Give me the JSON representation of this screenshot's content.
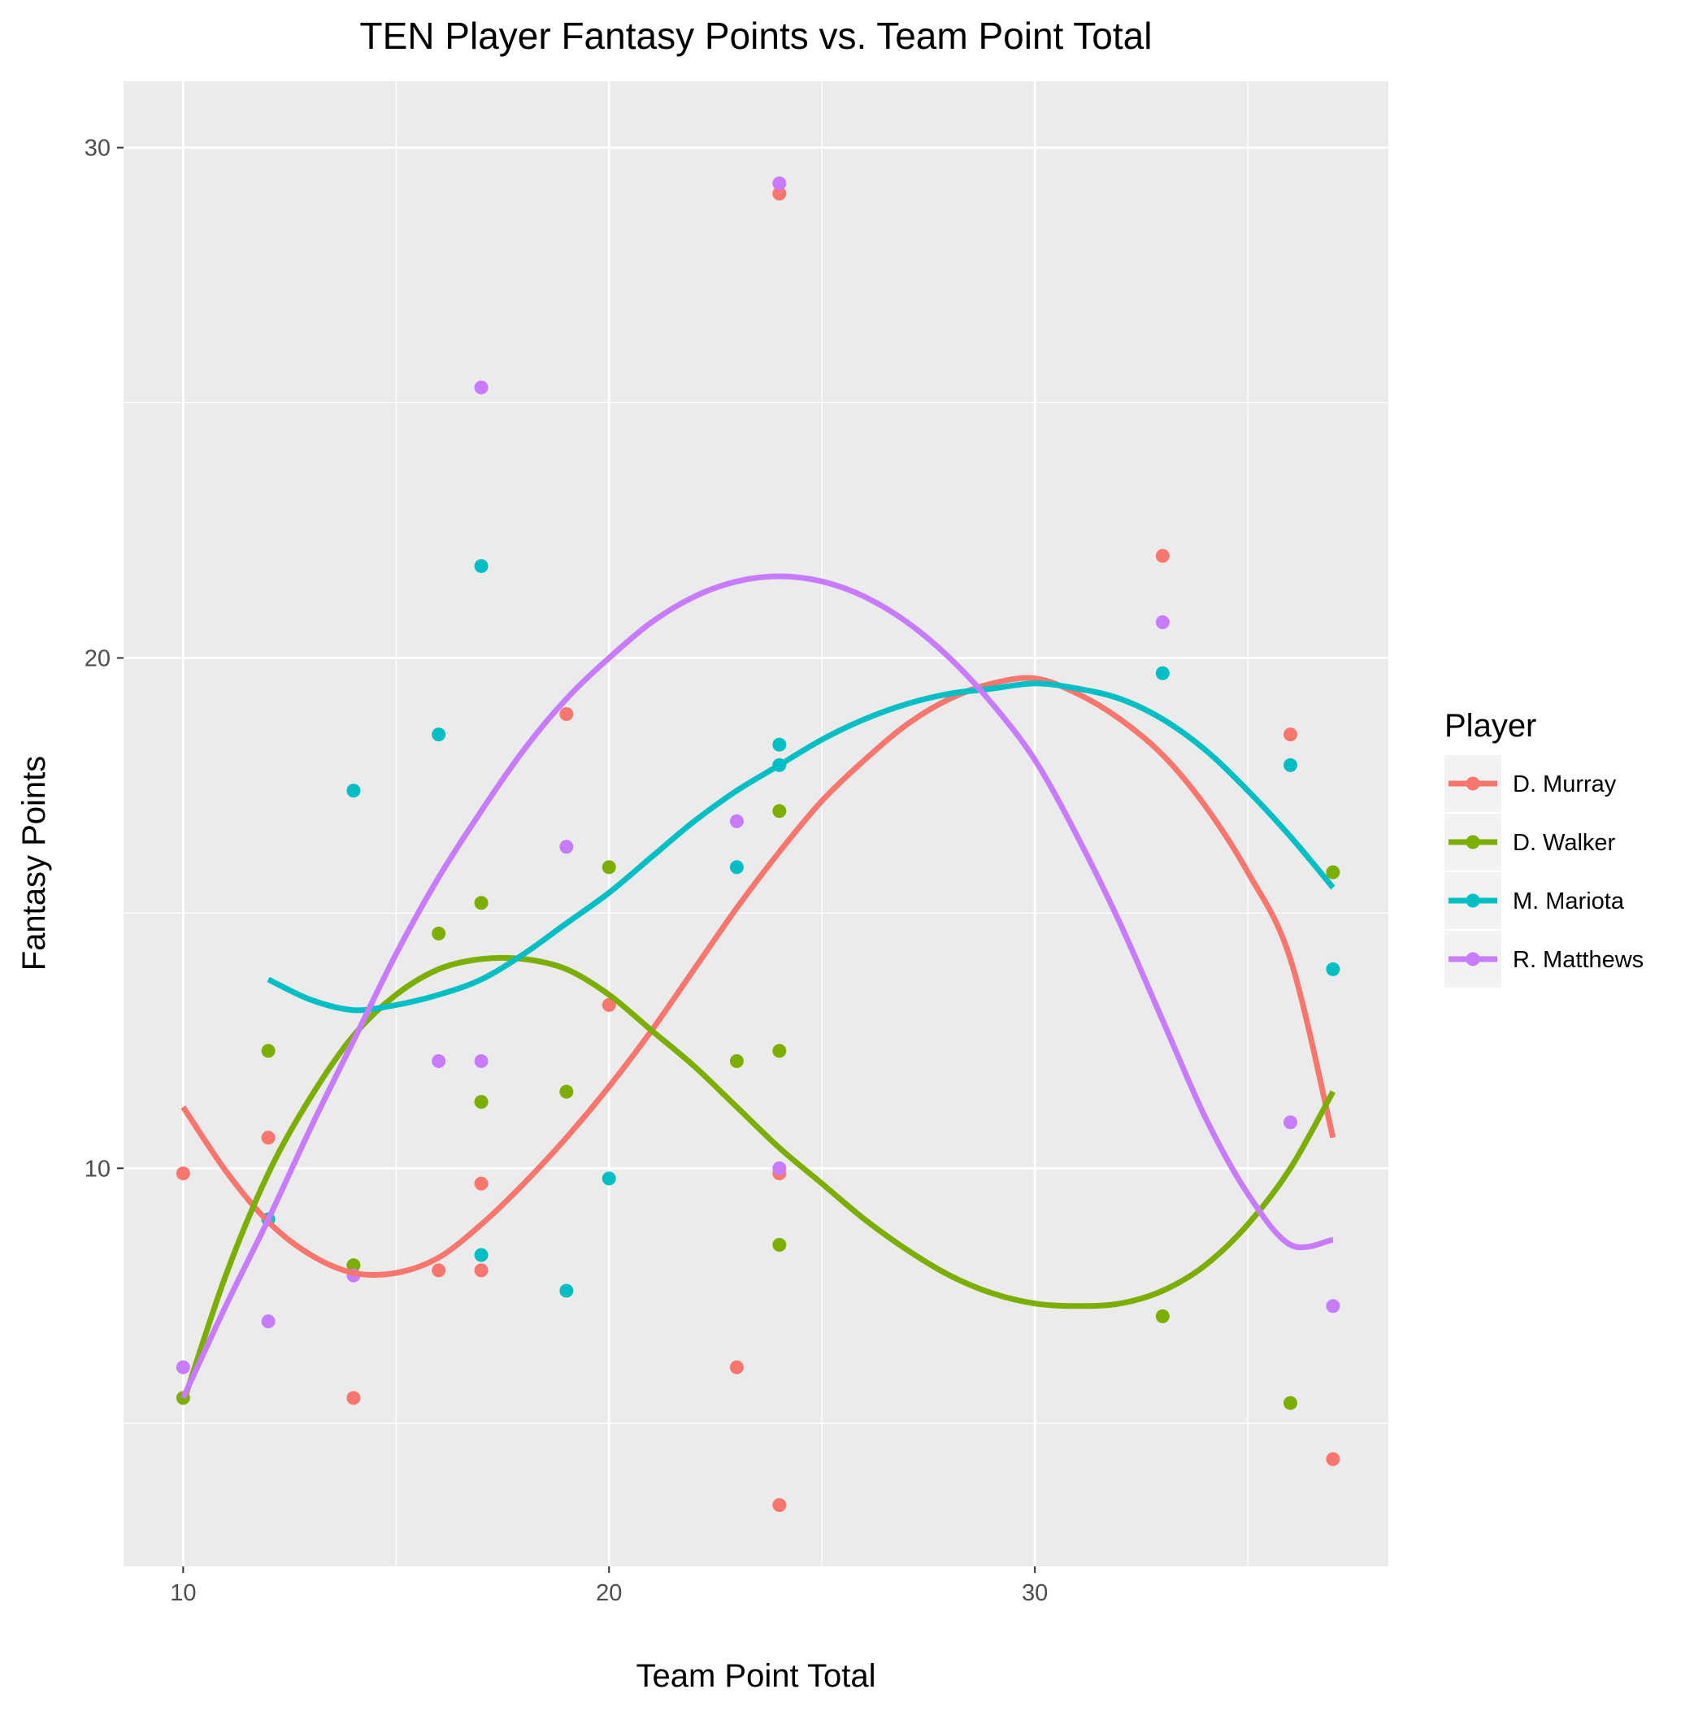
{
  "chart_data": {
    "type": "scatter",
    "title": "TEN Player Fantasy Points vs. Team Point Total",
    "xlabel": "Team Point Total",
    "ylabel": "Fantasy Points",
    "xlim": [
      8.6,
      38.3
    ],
    "ylim": [
      2.2,
      31.3
    ],
    "x_ticks": [
      10,
      20,
      30
    ],
    "y_ticks": [
      10,
      20,
      30
    ],
    "x_minor": [
      15,
      25,
      35
    ],
    "y_minor": [
      5,
      15,
      25
    ],
    "grid": true,
    "background": "#ebebeb",
    "smooth": "loess",
    "legend": {
      "title": "Player",
      "position": "right"
    },
    "series": [
      {
        "name": "D. Murray",
        "color": "#F8766D",
        "points": [
          [
            10,
            9.9
          ],
          [
            12,
            10.6
          ],
          [
            14,
            5.5
          ],
          [
            16,
            8.0
          ],
          [
            17,
            9.7
          ],
          [
            17,
            8.0
          ],
          [
            19,
            18.9
          ],
          [
            20,
            13.2
          ],
          [
            23,
            6.1
          ],
          [
            24,
            29.1
          ],
          [
            24,
            9.9
          ],
          [
            24,
            3.4
          ],
          [
            33,
            22.0
          ],
          [
            36,
            18.5
          ],
          [
            37,
            4.3
          ]
        ],
        "curve": [
          [
            10,
            11.2
          ],
          [
            11,
            9.95
          ],
          [
            12,
            8.95
          ],
          [
            13,
            8.3
          ],
          [
            14,
            7.95
          ],
          [
            15,
            7.95
          ],
          [
            16,
            8.25
          ],
          [
            17,
            8.9
          ],
          [
            18,
            9.7
          ],
          [
            19,
            10.6
          ],
          [
            20,
            11.6
          ],
          [
            21,
            12.7
          ],
          [
            22,
            13.9
          ],
          [
            23,
            15.1
          ],
          [
            24,
            16.2
          ],
          [
            25,
            17.2
          ],
          [
            26,
            18.0
          ],
          [
            27,
            18.7
          ],
          [
            28,
            19.2
          ],
          [
            29,
            19.5
          ],
          [
            30,
            19.6
          ],
          [
            31,
            19.3
          ],
          [
            32,
            18.8
          ],
          [
            33,
            18.1
          ],
          [
            34,
            17.1
          ],
          [
            35,
            15.8
          ],
          [
            36,
            14.1
          ],
          [
            37,
            10.6
          ]
        ]
      },
      {
        "name": "D. Walker",
        "color": "#7CAE00",
        "points": [
          [
            10,
            5.5
          ],
          [
            12,
            12.3
          ],
          [
            14,
            8.1
          ],
          [
            16,
            14.6
          ],
          [
            17,
            15.2
          ],
          [
            17,
            11.3
          ],
          [
            19,
            11.5
          ],
          [
            20,
            15.9
          ],
          [
            23,
            12.1
          ],
          [
            24,
            17.0
          ],
          [
            24,
            12.3
          ],
          [
            24,
            8.5
          ],
          [
            33,
            7.1
          ],
          [
            36,
            5.4
          ],
          [
            37,
            15.8
          ]
        ],
        "curve": [
          [
            10,
            5.4
          ],
          [
            11,
            7.9
          ],
          [
            12,
            9.9
          ],
          [
            13,
            11.4
          ],
          [
            14,
            12.6
          ],
          [
            15,
            13.4
          ],
          [
            16,
            13.9
          ],
          [
            17,
            14.1
          ],
          [
            18,
            14.1
          ],
          [
            19,
            13.9
          ],
          [
            20,
            13.4
          ],
          [
            21,
            12.7
          ],
          [
            22,
            12.0
          ],
          [
            23,
            11.2
          ],
          [
            24,
            10.4
          ],
          [
            25,
            9.7
          ],
          [
            26,
            9.0
          ],
          [
            27,
            8.4
          ],
          [
            28,
            7.9
          ],
          [
            29,
            7.55
          ],
          [
            30,
            7.35
          ],
          [
            31,
            7.3
          ],
          [
            32,
            7.35
          ],
          [
            33,
            7.6
          ],
          [
            34,
            8.1
          ],
          [
            35,
            8.9
          ],
          [
            36,
            10.0
          ],
          [
            37,
            11.5
          ]
        ]
      },
      {
        "name": "M. Mariota",
        "color": "#00BFC4",
        "points": [
          [
            12,
            9.0
          ],
          [
            14,
            17.4
          ],
          [
            16,
            18.5
          ],
          [
            17,
            21.8
          ],
          [
            17,
            8.3
          ],
          [
            19,
            7.6
          ],
          [
            20,
            9.8
          ],
          [
            23,
            15.9
          ],
          [
            24,
            18.3
          ],
          [
            24,
            17.9
          ],
          [
            33,
            19.7
          ],
          [
            36,
            17.9
          ],
          [
            37,
            13.9
          ]
        ],
        "curve": [
          [
            12,
            13.7
          ],
          [
            13,
            13.3
          ],
          [
            14,
            13.1
          ],
          [
            15,
            13.2
          ],
          [
            16,
            13.4
          ],
          [
            17,
            13.7
          ],
          [
            18,
            14.2
          ],
          [
            19,
            14.8
          ],
          [
            20,
            15.4
          ],
          [
            21,
            16.1
          ],
          [
            22,
            16.8
          ],
          [
            23,
            17.4
          ],
          [
            24,
            17.9
          ],
          [
            25,
            18.4
          ],
          [
            26,
            18.8
          ],
          [
            27,
            19.1
          ],
          [
            28,
            19.3
          ],
          [
            29,
            19.4
          ],
          [
            30,
            19.5
          ],
          [
            31,
            19.4
          ],
          [
            32,
            19.2
          ],
          [
            33,
            18.8
          ],
          [
            34,
            18.2
          ],
          [
            35,
            17.4
          ],
          [
            36,
            16.5
          ],
          [
            37,
            15.5
          ]
        ]
      },
      {
        "name": "R. Matthews",
        "color": "#C77CFF",
        "points": [
          [
            10,
            6.1
          ],
          [
            12,
            7.0
          ],
          [
            14,
            7.9
          ],
          [
            16,
            12.1
          ],
          [
            17,
            12.1
          ],
          [
            17,
            25.3
          ],
          [
            19,
            16.3
          ],
          [
            23,
            16.8
          ],
          [
            24,
            29.3
          ],
          [
            24,
            10.0
          ],
          [
            33,
            20.7
          ],
          [
            36,
            10.9
          ],
          [
            37,
            7.3
          ]
        ],
        "curve": [
          [
            10,
            5.5
          ],
          [
            11,
            7.3
          ],
          [
            12,
            9.0
          ],
          [
            13,
            10.8
          ],
          [
            14,
            12.5
          ],
          [
            15,
            14.2
          ],
          [
            16,
            15.7
          ],
          [
            17,
            17.0
          ],
          [
            18,
            18.2
          ],
          [
            19,
            19.2
          ],
          [
            20,
            20.0
          ],
          [
            21,
            20.7
          ],
          [
            22,
            21.2
          ],
          [
            23,
            21.5
          ],
          [
            24,
            21.6
          ],
          [
            25,
            21.5
          ],
          [
            26,
            21.2
          ],
          [
            27,
            20.7
          ],
          [
            28,
            20.0
          ],
          [
            29,
            19.1
          ],
          [
            30,
            18.0
          ],
          [
            31,
            16.5
          ],
          [
            32,
            14.8
          ],
          [
            33,
            12.9
          ],
          [
            34,
            11.0
          ],
          [
            35,
            9.5
          ],
          [
            36,
            8.5
          ],
          [
            37,
            8.6
          ]
        ]
      }
    ]
  }
}
